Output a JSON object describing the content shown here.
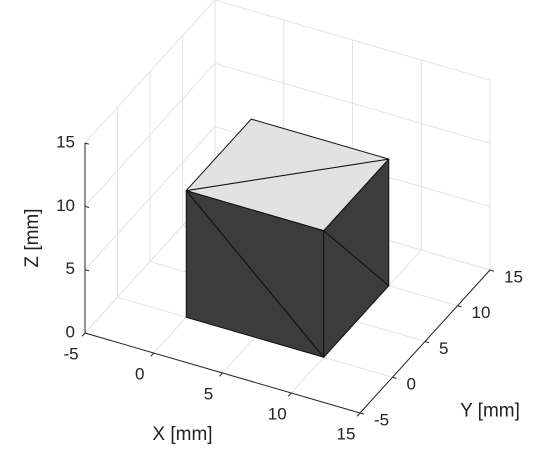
{
  "chart_data": {
    "type": "patch3d",
    "xlabel": "X [mm]",
    "ylabel": "Y [mm]",
    "zlabel": "Z [mm]",
    "xlim": [
      -5,
      15
    ],
    "ylim": [
      -5,
      15
    ],
    "zlim": [
      0,
      15
    ],
    "xticks": [
      -5,
      0,
      5,
      10,
      15
    ],
    "yticks": [
      -5,
      0,
      5,
      10,
      15
    ],
    "zticks": [
      0,
      5,
      10,
      15
    ],
    "grid": true,
    "vertices": [
      [
        0,
        0,
        0
      ],
      [
        10,
        0,
        0
      ],
      [
        10,
        10,
        0
      ],
      [
        0,
        10,
        0
      ],
      [
        0,
        0,
        10
      ],
      [
        10,
        0,
        10
      ],
      [
        10,
        10,
        10
      ],
      [
        0,
        10,
        10
      ]
    ],
    "triangles": [
      {
        "indices": [
          0,
          1,
          4
        ],
        "color": "#3b3c3b"
      },
      {
        "indices": [
          1,
          5,
          4
        ],
        "color": "#3b3c3b"
      },
      {
        "indices": [
          1,
          2,
          5
        ],
        "color": "#3b3c3b"
      },
      {
        "indices": [
          2,
          6,
          5
        ],
        "color": "#3b3c3b"
      },
      {
        "indices": [
          4,
          5,
          6
        ],
        "color": "#e2e2e2"
      },
      {
        "indices": [
          4,
          6,
          7
        ],
        "color": "#e2e2e2"
      }
    ]
  }
}
